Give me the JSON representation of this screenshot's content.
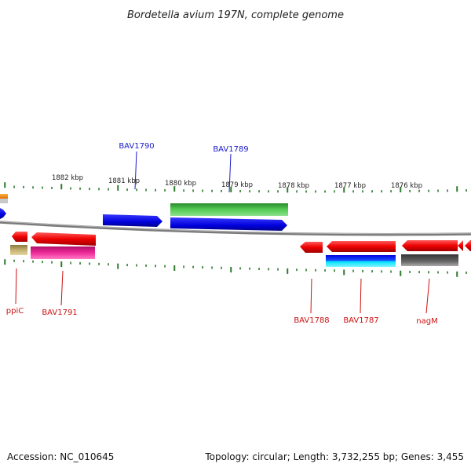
{
  "title": "Bordetella avium 197N, complete genome",
  "footer": {
    "accession": "Accession: NC_010645",
    "topology": "Topology: circular; Length: 3,732,255 bp; Genes: 3,455"
  },
  "colors": {
    "label_blue": "#1a1acc",
    "label_red": "#cc1111",
    "tick_green": "#2d7a2d",
    "backbone": "#7a7a7a"
  },
  "scale_labels": [
    "1882 kbp",
    "1881 kbp",
    "1880 kbp",
    "1879 kbp",
    "1878 kbp",
    "1877 kbp",
    "1876 kbp"
  ],
  "gene_labels_top": [
    "BAV1790",
    "BAV1789"
  ],
  "gene_labels_bottom": [
    "ppiC",
    "BAV1791",
    "BAV1788",
    "BAV1787",
    "nagM"
  ]
}
